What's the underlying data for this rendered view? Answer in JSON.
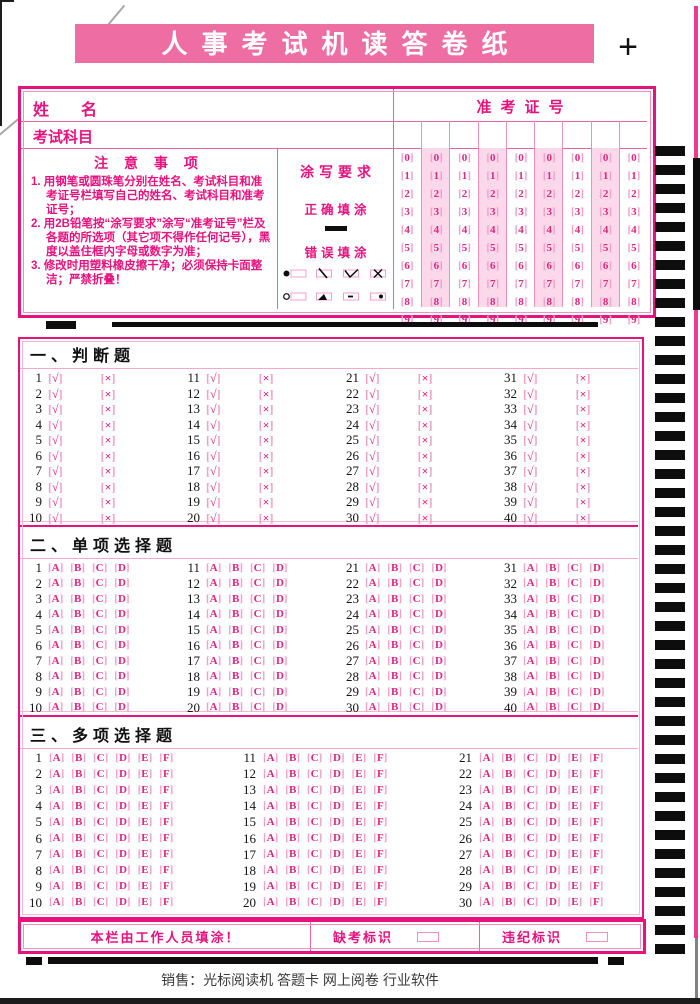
{
  "title_banner": {
    "text": "人事考试机读答卷纸"
  },
  "registration_mark": "+",
  "header": {
    "name_label": "姓　　名",
    "subject_label": "考试科目",
    "ticket_label": "准考证号",
    "ticket_columns": 9,
    "digits": [
      "0",
      "1",
      "2",
      "3",
      "4",
      "5",
      "6",
      "7",
      "8",
      "9"
    ]
  },
  "notice": {
    "title": "注 意 事 项",
    "items": [
      "用钢笔或圆珠笔分别在姓名、考试科目和准考证号栏填写自己的姓名、考试科目和准考证号；",
      "用2B铅笔按“涂写要求”涂写“准考证号”栏及各题的所选项（其它项不得作任何记号），黑度以盖住框内字母或数字为准；",
      "修改时用塑料橡皮擦干净；必须保持卡面整洁；严禁折叠！"
    ]
  },
  "fill_requirements": {
    "title": "涂写要求",
    "correct_label": "正确填涂",
    "wrong_label": "错误填涂",
    "wrong_marks": [
      "filled-circle",
      "slash",
      "check",
      "cross",
      "empty-circle",
      "triangle",
      "dash",
      "dot"
    ]
  },
  "sections": [
    {
      "title": "一、判断题",
      "options": [
        "√",
        "×"
      ],
      "column_starts": [
        1,
        11,
        21,
        31
      ],
      "rows_per_column": 10
    },
    {
      "title": "二、单项选择题",
      "options": [
        "A",
        "B",
        "C",
        "D"
      ],
      "column_starts": [
        1,
        11,
        21,
        31
      ],
      "rows_per_column": 10
    },
    {
      "title": "三、多项选择题",
      "options": [
        "A",
        "B",
        "C",
        "D",
        "E",
        "F"
      ],
      "column_starts": [
        1,
        11,
        21
      ],
      "rows_per_column": 10
    }
  ],
  "staff_row": {
    "fill_label": "本栏由工作人员填涂！",
    "absent_label": "缺考标识",
    "violation_label": "违纪标识"
  },
  "footer": {
    "sales_text": "销售：光标阅读机 答题卡 网上阅卷 行业软件"
  },
  "timing": {
    "right_marks_count": 43
  },
  "colors": {
    "banner_pink": "#ee6ea4",
    "magenta": "#e8127f",
    "light_pink": "#f5a8cc",
    "shade_pink": "#fcd9ea",
    "bubble_letter": "#e02680",
    "mark_black": "#0d0d0d"
  }
}
